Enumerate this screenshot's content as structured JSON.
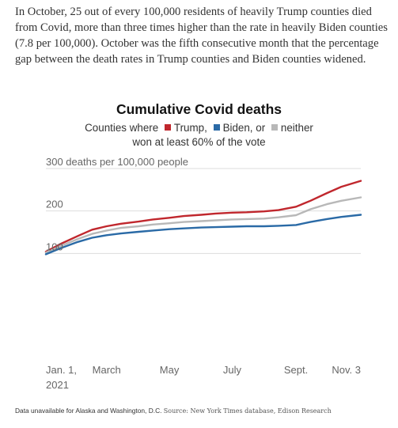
{
  "intro_text": "In October, 25 out of every 100,000 residents of heavily Trump counties died from Covid, more than three times higher than the rate in heavily Biden counties (7.8 per 100,000). October was the fifth consecutive month that the percentage gap between the death rates in Trump counties and Biden counties widened.",
  "legend": {
    "prefix": "Counties where",
    "trump": "Trump,",
    "biden": "Biden, or",
    "neither": "neither",
    "line2": "won at least 60% of the vote"
  },
  "footnote": {
    "note": "Data unavailable for Alaska and Washington, D.C.",
    "source": "Source: New York Times database, Edison Research"
  },
  "colors": {
    "trump": "#c0272d",
    "biden": "#2a6aa6",
    "neither": "#b8b8b8",
    "grid": "#dddddd",
    "text": "#666666"
  },
  "chart_data": {
    "type": "line",
    "title": "Cumulative Covid deaths",
    "ylabel": "",
    "xlabel": "",
    "ylim": [
      0,
      300
    ],
    "y_ticks": [
      {
        "value": 100,
        "label": "100"
      },
      {
        "value": 200,
        "label": "200"
      },
      {
        "value": 300,
        "label": "300 deaths per 100,000 people"
      }
    ],
    "x_range": [
      "2021-01-01",
      "2021-11-03"
    ],
    "x_ticks": [
      {
        "date": "2021-01-01",
        "label": "Jan. 1,",
        "sublabel": "2021"
      },
      {
        "date": "2021-03-01",
        "label": "March",
        "sublabel": ""
      },
      {
        "date": "2021-05-01",
        "label": "May",
        "sublabel": ""
      },
      {
        "date": "2021-07-01",
        "label": "July",
        "sublabel": ""
      },
      {
        "date": "2021-09-01",
        "label": "Sept.",
        "sublabel": ""
      },
      {
        "date": "2021-11-03",
        "label": "Nov. 3",
        "sublabel": ""
      }
    ],
    "grid": true,
    "series": [
      {
        "name": "Trump",
        "color": "#c0272d",
        "x": [
          "2021-01-01",
          "2021-01-15",
          "2021-02-01",
          "2021-02-15",
          "2021-03-01",
          "2021-03-15",
          "2021-04-01",
          "2021-04-15",
          "2021-05-01",
          "2021-05-15",
          "2021-06-01",
          "2021-06-15",
          "2021-07-01",
          "2021-07-15",
          "2021-08-01",
          "2021-08-15",
          "2021-09-01",
          "2021-09-15",
          "2021-10-01",
          "2021-10-15",
          "2021-11-03"
        ],
        "y": [
          104,
          122,
          141,
          156,
          164,
          170,
          175,
          180,
          184,
          188,
          191,
          194,
          196,
          197,
          199,
          202,
          210,
          224,
          242,
          257,
          271
        ]
      },
      {
        "name": "neither",
        "color": "#b8b8b8",
        "x": [
          "2021-01-01",
          "2021-01-15",
          "2021-02-01",
          "2021-02-15",
          "2021-03-01",
          "2021-03-15",
          "2021-04-01",
          "2021-04-15",
          "2021-05-01",
          "2021-05-15",
          "2021-06-01",
          "2021-06-15",
          "2021-07-01",
          "2021-07-15",
          "2021-08-01",
          "2021-08-15",
          "2021-09-01",
          "2021-09-15",
          "2021-10-01",
          "2021-10-15",
          "2021-11-03"
        ],
        "y": [
          102,
          117,
          134,
          146,
          154,
          160,
          164,
          168,
          171,
          174,
          176,
          178,
          180,
          181,
          182,
          185,
          190,
          204,
          216,
          224,
          232
        ]
      },
      {
        "name": "Biden",
        "color": "#2a6aa6",
        "x": [
          "2021-01-01",
          "2021-01-15",
          "2021-02-01",
          "2021-02-15",
          "2021-03-01",
          "2021-03-15",
          "2021-04-01",
          "2021-04-15",
          "2021-05-01",
          "2021-05-15",
          "2021-06-01",
          "2021-06-15",
          "2021-07-01",
          "2021-07-15",
          "2021-08-01",
          "2021-08-15",
          "2021-09-01",
          "2021-09-15",
          "2021-10-01",
          "2021-10-15",
          "2021-11-03"
        ],
        "y": [
          98,
          112,
          127,
          137,
          143,
          147,
          151,
          154,
          157,
          159,
          161,
          162,
          163,
          164,
          164,
          165,
          167,
          174,
          181,
          186,
          191
        ]
      }
    ]
  }
}
